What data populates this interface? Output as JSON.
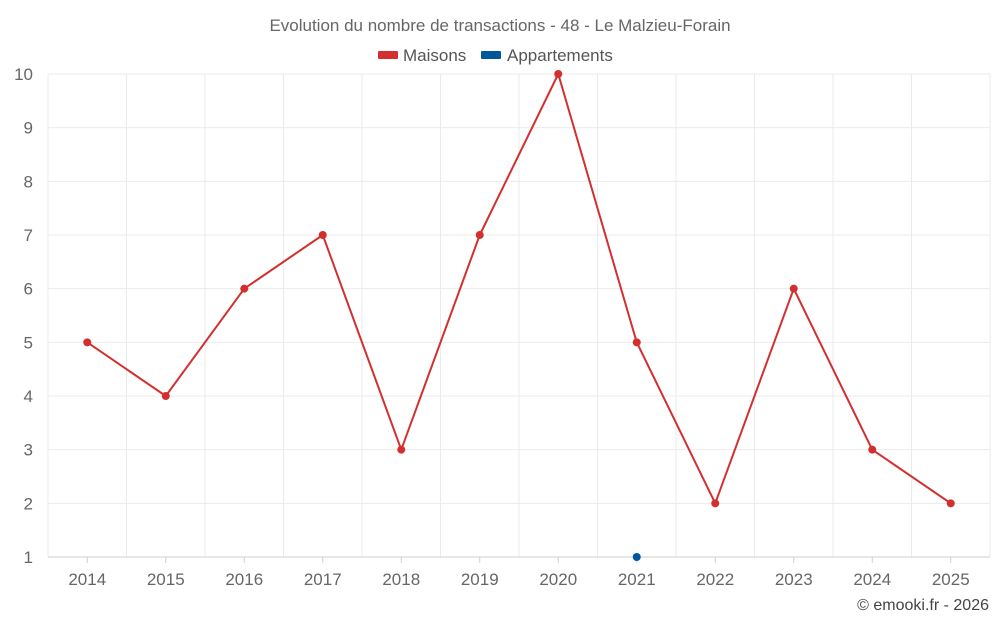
{
  "chart_data": {
    "type": "line",
    "title": "Evolution du nombre de transactions - 48 - Le Malzieu-Forain",
    "categories": [
      "2014",
      "2015",
      "2016",
      "2017",
      "2018",
      "2019",
      "2020",
      "2021",
      "2022",
      "2023",
      "2024",
      "2025"
    ],
    "series": [
      {
        "name": "Maisons",
        "color": "#d32f2f",
        "values": [
          5,
          4,
          6,
          7,
          3,
          7,
          10,
          5,
          2,
          6,
          3,
          2
        ]
      },
      {
        "name": "Appartements",
        "color": "#01579b",
        "values": [
          null,
          null,
          null,
          null,
          null,
          null,
          null,
          1,
          null,
          null,
          null,
          null
        ]
      }
    ],
    "ylim": [
      1,
      10
    ],
    "yticks": [
      1,
      2,
      3,
      4,
      5,
      6,
      7,
      8,
      9,
      10
    ],
    "grid": true,
    "legend_position": "top-center"
  },
  "credit": "© emooki.fr - 2026"
}
